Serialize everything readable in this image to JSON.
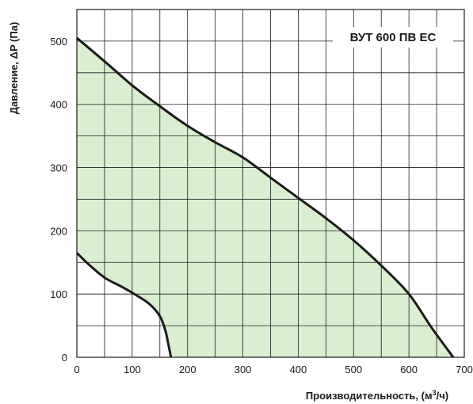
{
  "chart_data": {
    "type": "area",
    "xlabel": "Производительность, (м³/ч)",
    "ylabel": "Давление, ΔP (Па)",
    "model_label": "ВУТ 600 ПВ ЕС",
    "xlim": [
      0,
      700
    ],
    "ylim": [
      0,
      550
    ],
    "x_ticks": [
      0,
      100,
      200,
      300,
      400,
      500,
      600,
      700
    ],
    "y_ticks": [
      0,
      100,
      200,
      300,
      400,
      500
    ],
    "grid": true,
    "colors": {
      "fill": "#d9efd0",
      "line": "#1a1a1a",
      "grid": "#1a1a1a"
    },
    "series": [
      {
        "role": "upper",
        "x": [
          0,
          50,
          100,
          150,
          200,
          250,
          300,
          350,
          400,
          450,
          500,
          550,
          600,
          640,
          680
        ],
        "y": [
          505,
          468,
          430,
          397,
          366,
          340,
          316,
          284,
          252,
          220,
          185,
          145,
          100,
          48,
          0
        ]
      },
      {
        "role": "lower",
        "x": [
          0,
          20,
          50,
          80,
          100,
          130,
          150,
          160,
          165,
          170
        ],
        "y": [
          165,
          148,
          126,
          112,
          102,
          85,
          65,
          42,
          22,
          0
        ]
      }
    ]
  }
}
